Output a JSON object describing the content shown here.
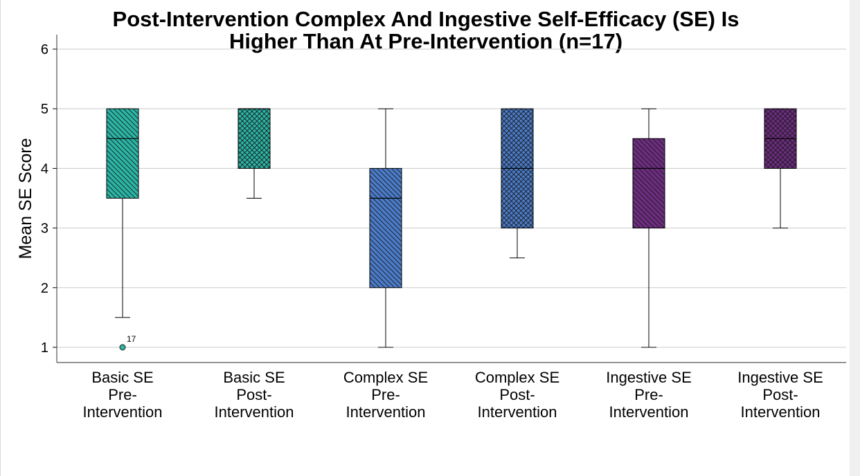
{
  "chart_data": {
    "type": "boxplot",
    "title_lines": [
      "Post-Intervention Complex And Ingestive Self-Efficacy (SE) Is",
      "Higher Than At Pre-Intervention (n=17)"
    ],
    "ylabel": "Mean SE Score",
    "xlabel": "",
    "ylim": [
      0.75,
      6.25
    ],
    "yticks": [
      "1",
      "2",
      "3",
      "4",
      "5",
      "6"
    ],
    "grid": "horizontal",
    "categories": [
      [
        "Basic SE",
        "Pre-",
        "Intervention"
      ],
      [
        "Basic SE",
        "Post-",
        "Intervention"
      ],
      [
        "Complex SE",
        "Pre-",
        "Intervention"
      ],
      [
        "Complex SE",
        "Post-",
        "Intervention"
      ],
      [
        "Ingestive SE",
        "Pre-",
        "Intervention"
      ],
      [
        "Ingestive SE",
        "Post-",
        "Intervention"
      ]
    ],
    "boxes": [
      {
        "whisker_low": 1.5,
        "q1": 3.5,
        "median": 4.5,
        "q3": 5.0,
        "whisker_high": 5.0,
        "outliers": [
          {
            "value": 1.0,
            "label": "17"
          }
        ],
        "color": "#2ab5a5",
        "pattern": "diagonal"
      },
      {
        "whisker_low": 3.5,
        "q1": 4.0,
        "median": 5.0,
        "q3": 5.0,
        "whisker_high": 5.0,
        "outliers": [],
        "color": "#2ab5a5",
        "pattern": "crosshatch"
      },
      {
        "whisker_low": 1.0,
        "q1": 2.0,
        "median": 3.5,
        "q3": 4.0,
        "whisker_high": 5.0,
        "outliers": [],
        "color": "#4a7bc8",
        "pattern": "diagonal"
      },
      {
        "whisker_low": 2.5,
        "q1": 3.0,
        "median": 4.0,
        "q3": 5.0,
        "whisker_high": 5.0,
        "outliers": [],
        "color": "#4a7bc8",
        "pattern": "crosshatch"
      },
      {
        "whisker_low": 1.0,
        "q1": 3.0,
        "median": 4.0,
        "q3": 4.5,
        "whisker_high": 5.0,
        "outliers": [],
        "color": "#6d2c80",
        "pattern": "diagonal"
      },
      {
        "whisker_low": 3.0,
        "q1": 4.0,
        "median": 4.5,
        "q3": 5.0,
        "whisker_high": 5.0,
        "outliers": [],
        "color": "#6d2c80",
        "pattern": "crosshatch"
      }
    ]
  }
}
